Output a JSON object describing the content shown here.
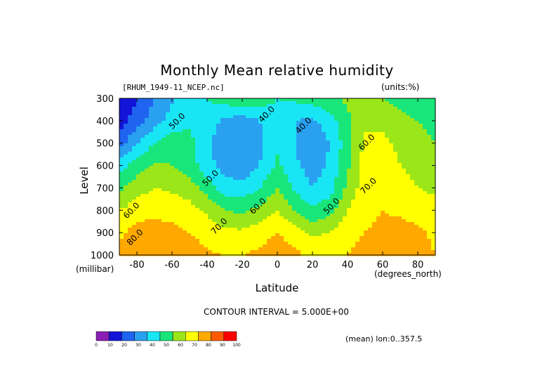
{
  "chart_data": {
    "type": "heatmap",
    "title": "Monthly Mean relative humidity",
    "dataset_label": "[RHUM_1949-11_NCEP.nc]",
    "units_label": "(units:%)",
    "xlabel": "Latitude",
    "x_unit_label": "(degrees_north)",
    "ylabel": "Level",
    "y_unit_label": "(millibar)",
    "xlim": [
      -90,
      90
    ],
    "ylim": [
      1000,
      300
    ],
    "x_ticks": [
      -80,
      -60,
      -40,
      -20,
      0,
      20,
      40,
      60,
      80
    ],
    "x_tick_labels": [
      "-80",
      "-60",
      "-40",
      "-20",
      "0",
      "20",
      "40",
      "60",
      "80"
    ],
    "y_ticks": [
      300,
      400,
      500,
      600,
      700,
      800,
      900,
      1000
    ],
    "y_tick_labels": [
      "300",
      "400",
      "500",
      "600",
      "700",
      "800",
      "900",
      "1000"
    ],
    "contour_interval_text": "CONTOUR INTERVAL = 5.000E+00",
    "mean_info_text": "(mean) lon:0..357.5",
    "contour_labels": [
      {
        "text": "50.0",
        "x": -56,
        "y": 410
      },
      {
        "text": "40.0",
        "x": -5,
        "y": 380
      },
      {
        "text": "40.0",
        "x": 16,
        "y": 430
      },
      {
        "text": "60.0",
        "x": 52,
        "y": 505
      },
      {
        "text": "50.0",
        "x": -37,
        "y": 665
      },
      {
        "text": "70.0",
        "x": 53,
        "y": 700
      },
      {
        "text": "60.0",
        "x": -10,
        "y": 790
      },
      {
        "text": "50.0",
        "x": 32,
        "y": 790
      },
      {
        "text": "60.0",
        "x": -82,
        "y": 810
      },
      {
        "text": "70.0",
        "x": -32,
        "y": 880
      },
      {
        "text": "80.0",
        "x": -80,
        "y": 930
      }
    ],
    "colorbar": {
      "levels": [
        0,
        10,
        20,
        30,
        40,
        50,
        60,
        70,
        80,
        90,
        100
      ],
      "labels": [
        "0",
        "10",
        "20",
        "30",
        "40",
        "50",
        "60",
        "70",
        "80",
        "90",
        "100"
      ],
      "colors": [
        "#8b1fb3",
        "#1414d9",
        "#1e64f0",
        "#2aa0f0",
        "#19e6f5",
        "#19e67a",
        "#9be619",
        "#ffff00",
        "#ffa800",
        "#ff5a00",
        "#ff0000"
      ]
    },
    "field": {
      "description_axes": "rows = pressure levels (mb), cols = latitude (deg)",
      "lat": [
        -90,
        -80,
        -70,
        -60,
        -50,
        -40,
        -30,
        -20,
        -10,
        0,
        10,
        20,
        30,
        40,
        50,
        60,
        70,
        80,
        90
      ],
      "lev": [
        300,
        400,
        500,
        600,
        700,
        800,
        900,
        1000
      ],
      "values": [
        [
          10,
          20,
          30,
          38,
          45,
          50,
          55,
          58,
          55,
          50,
          52,
          55,
          58,
          62,
          62,
          60,
          55,
          50,
          50
        ],
        [
          15,
          25,
          35,
          45,
          48,
          45,
          38,
          35,
          40,
          48,
          40,
          38,
          45,
          58,
          68,
          68,
          65,
          60,
          58
        ],
        [
          25,
          40,
          50,
          55,
          53,
          42,
          33,
          32,
          38,
          48,
          40,
          33,
          40,
          56,
          72,
          72,
          68,
          62,
          60
        ],
        [
          45,
          55,
          62,
          60,
          55,
          44,
          35,
          33,
          40,
          52,
          42,
          35,
          42,
          58,
          75,
          75,
          70,
          66,
          64
        ],
        [
          58,
          66,
          70,
          68,
          65,
          55,
          45,
          43,
          50,
          60,
          48,
          40,
          46,
          62,
          76,
          77,
          74,
          70,
          68
        ],
        [
          70,
          75,
          77,
          76,
          74,
          68,
          60,
          58,
          63,
          70,
          60,
          52,
          56,
          70,
          78,
          80,
          78,
          76,
          74
        ],
        [
          78,
          84,
          85,
          83,
          80,
          77,
          73,
          72,
          76,
          80,
          75,
          68,
          70,
          77,
          80,
          82,
          84,
          82,
          78
        ],
        [
          82,
          88,
          90,
          88,
          84,
          81,
          80,
          80,
          82,
          86,
          82,
          78,
          78,
          80,
          83,
          85,
          87,
          84,
          80
        ]
      ]
    }
  }
}
